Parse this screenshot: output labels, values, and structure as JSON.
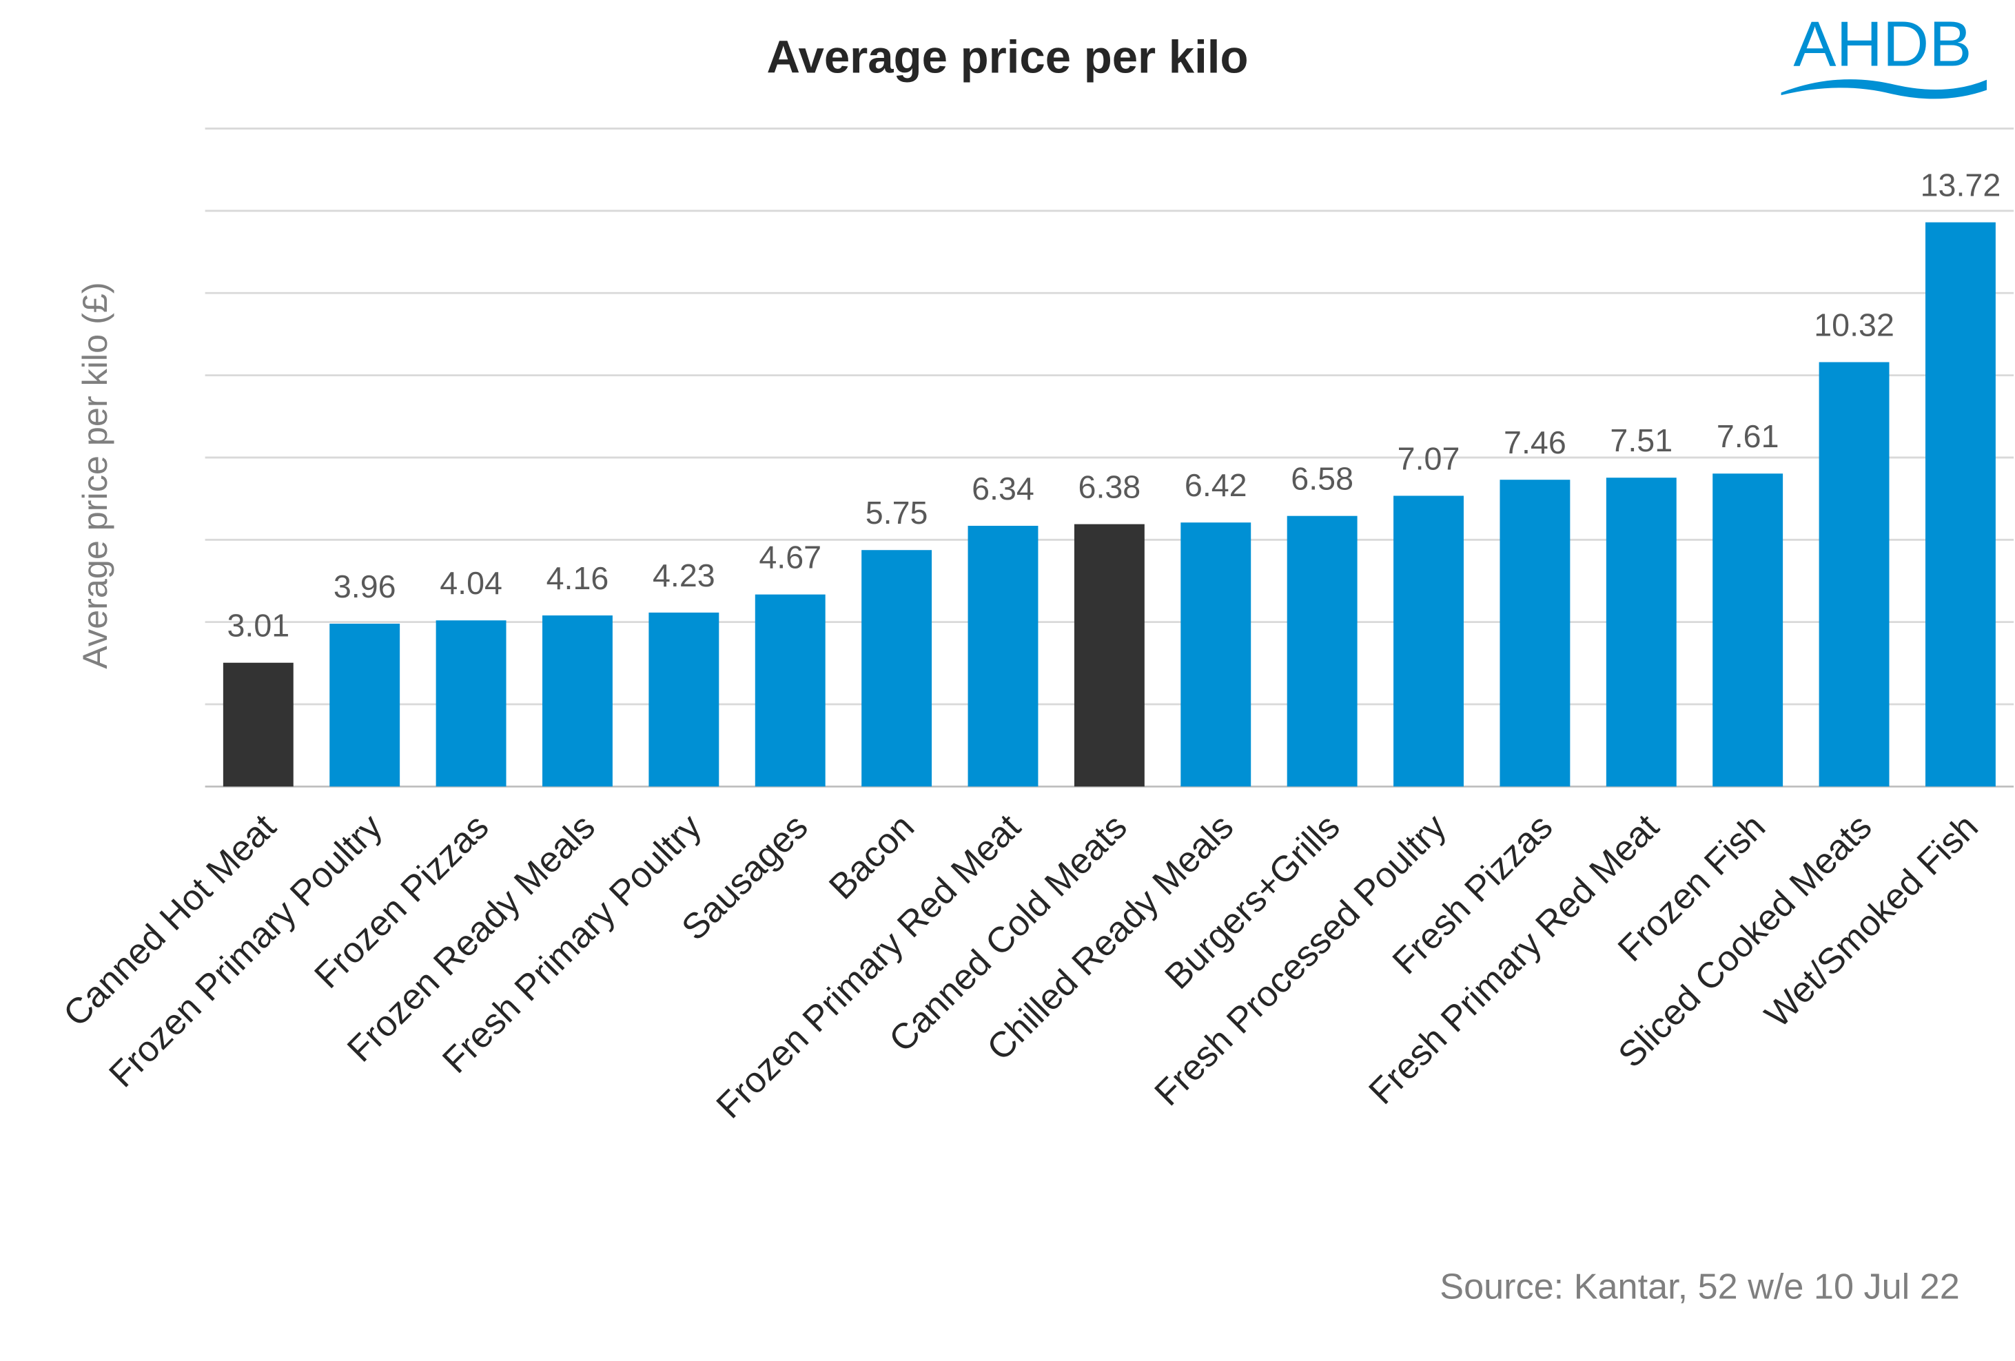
{
  "chart_data": {
    "type": "bar",
    "title": "Average price per kilo",
    "logo": "AHDB",
    "y_label": "Average price per kilo (£)",
    "source": "Source: Kantar, 52 w/e 10 Jul 22",
    "categories": [
      "Canned Hot Meat",
      "Frozen Primary Poultry",
      "Frozen Pizzas",
      "Frozen Ready Meals",
      "Fresh Primary Poultry",
      "Sausages",
      "Bacon",
      "Frozen Primary Red Meat",
      "Canned Cold Meats",
      "Chilled Ready Meals",
      "Burgers+Grills",
      "Fresh Processed Poultry",
      "Fresh Pizzas",
      "Fresh Primary Red Meat",
      "Frozen Fish",
      "Sliced Cooked Meats",
      "Wet/Smoked Fish"
    ],
    "values": [
      3.01,
      3.96,
      4.04,
      4.16,
      4.23,
      4.67,
      5.75,
      6.34,
      6.38,
      6.42,
      6.58,
      7.07,
      7.46,
      7.51,
      7.61,
      10.32,
      13.72
    ],
    "colors": [
      "#333333",
      "#0090d4",
      "#0090d4",
      "#0090d4",
      "#0090d4",
      "#0090d4",
      "#0090d4",
      "#0090d4",
      "#333333",
      "#0090d4",
      "#0090d4",
      "#0090d4",
      "#0090d4",
      "#0090d4",
      "#0090d4",
      "#0090d4",
      "#0090d4"
    ],
    "ylim": [
      0,
      16
    ],
    "yticks": [
      0,
      2,
      4,
      6,
      8,
      10,
      12,
      14,
      16
    ],
    "grid": true
  }
}
